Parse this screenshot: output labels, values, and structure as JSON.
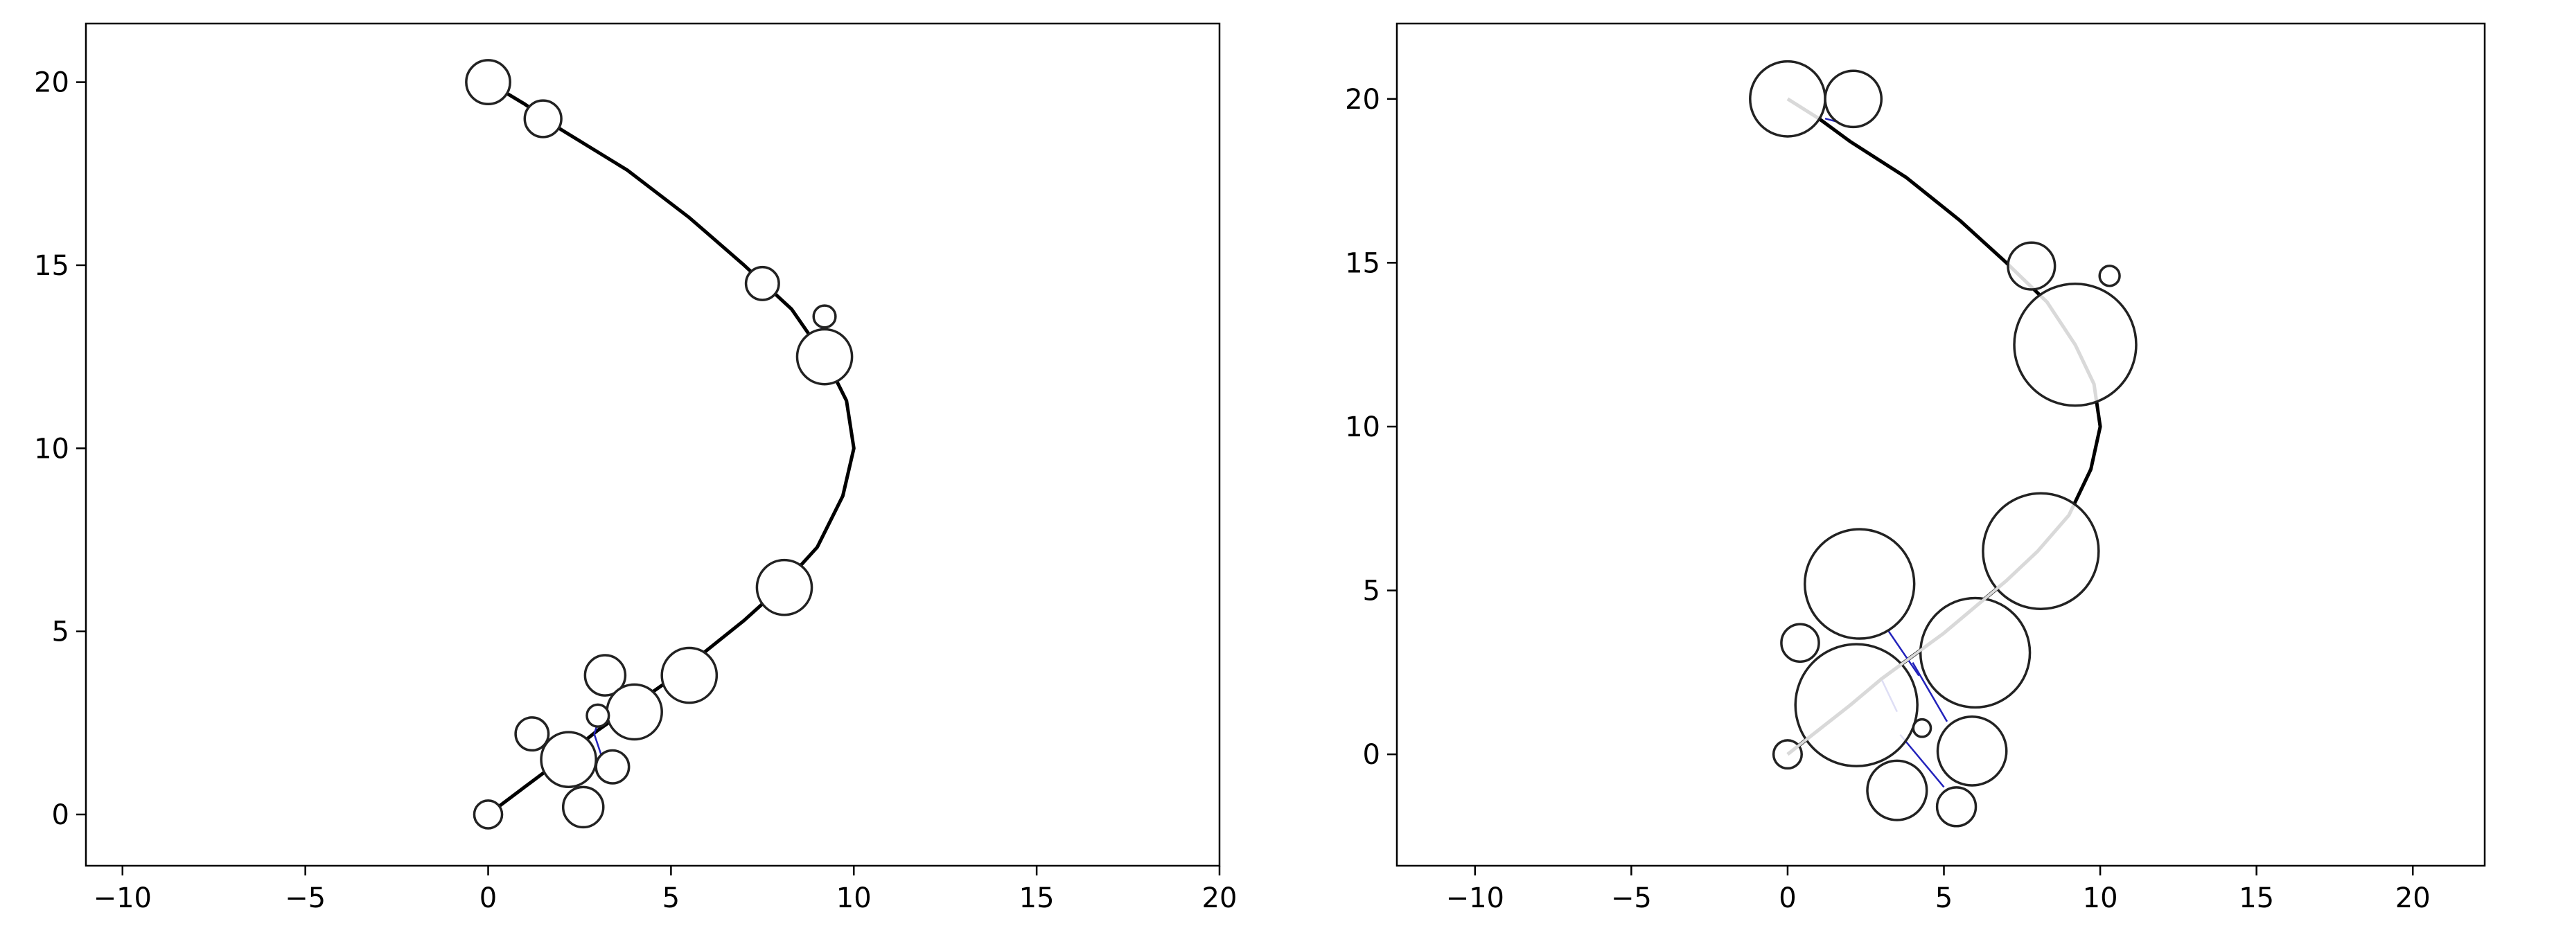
{
  "chart_data": [
    {
      "type": "scatter",
      "title": "",
      "xlabel": "",
      "ylabel": "",
      "xlim": [
        -11,
        20
      ],
      "ylim": [
        -1.4,
        21.6
      ],
      "xticks": [
        -10,
        -5,
        0,
        5,
        10,
        15,
        20
      ],
      "yticks": [
        0,
        5,
        10,
        15,
        20
      ],
      "xtick_labels": [
        "−10",
        "−5",
        "0",
        "5",
        "10",
        "15",
        "20"
      ],
      "ytick_labels": [
        "0",
        "5",
        "10",
        "15",
        "20"
      ],
      "grid": false,
      "curve_color": "#000000",
      "circle_fill": "#ffffff",
      "circle_edge": "#222222",
      "link_color": "#2222bb",
      "curve": [
        {
          "x": 0,
          "y": 0
        },
        {
          "x": 1.0,
          "y": 0.75
        },
        {
          "x": 2.0,
          "y": 1.5
        },
        {
          "x": 3.0,
          "y": 2.3
        },
        {
          "x": 4.0,
          "y": 3.0
        },
        {
          "x": 5.0,
          "y": 3.7
        },
        {
          "x": 6.0,
          "y": 4.5
        },
        {
          "x": 7.0,
          "y": 5.3
        },
        {
          "x": 8.0,
          "y": 6.2
        },
        {
          "x": 9.0,
          "y": 7.3
        },
        {
          "x": 9.7,
          "y": 8.7
        },
        {
          "x": 10.0,
          "y": 10.0
        },
        {
          "x": 9.8,
          "y": 11.3
        },
        {
          "x": 9.2,
          "y": 12.5
        },
        {
          "x": 8.3,
          "y": 13.8
        },
        {
          "x": 7.0,
          "y": 15.0
        },
        {
          "x": 5.5,
          "y": 16.3
        },
        {
          "x": 3.8,
          "y": 17.6
        },
        {
          "x": 2.0,
          "y": 18.7
        },
        {
          "x": 1.0,
          "y": 19.4
        },
        {
          "x": 0,
          "y": 20.0
        }
      ],
      "circles": [
        {
          "x": 0.0,
          "y": 20.0,
          "r": 0.6
        },
        {
          "x": 1.5,
          "y": 19.0,
          "r": 0.5
        },
        {
          "x": 7.5,
          "y": 14.5,
          "r": 0.45
        },
        {
          "x": 9.2,
          "y": 13.6,
          "r": 0.3
        },
        {
          "x": 9.2,
          "y": 12.5,
          "r": 0.75
        },
        {
          "x": 8.1,
          "y": 6.2,
          "r": 0.75
        },
        {
          "x": 5.5,
          "y": 3.8,
          "r": 0.75
        },
        {
          "x": 3.2,
          "y": 3.8,
          "r": 0.55
        },
        {
          "x": 4.0,
          "y": 2.8,
          "r": 0.75
        },
        {
          "x": 3.0,
          "y": 2.7,
          "r": 0.3
        },
        {
          "x": 1.2,
          "y": 2.2,
          "r": 0.45
        },
        {
          "x": 2.2,
          "y": 1.5,
          "r": 0.75
        },
        {
          "x": 3.4,
          "y": 1.3,
          "r": 0.45
        },
        {
          "x": 2.6,
          "y": 0.2,
          "r": 0.55
        },
        {
          "x": 0.0,
          "y": 0.0,
          "r": 0.38
        }
      ],
      "links": [
        {
          "x1": 1.2,
          "y1": 19.4,
          "x2": 1.5,
          "y2": 19.0
        },
        {
          "x1": 9.0,
          "y1": 13.1,
          "x2": 9.2,
          "y2": 13.4
        },
        {
          "x1": 2.9,
          "y1": 2.2,
          "x2": 3.0,
          "y2": 2.5
        },
        {
          "x1": 2.9,
          "y1": 2.2,
          "x2": 3.1,
          "y2": 1.6
        }
      ]
    },
    {
      "type": "scatter",
      "title": "",
      "xlabel": "",
      "ylabel": "",
      "xlim": [
        -12.5,
        22.3
      ],
      "ylim": [
        -3.4,
        22.3
      ],
      "xticks": [
        -10,
        -5,
        0,
        5,
        10,
        15,
        20
      ],
      "yticks": [
        0,
        5,
        10,
        15,
        20
      ],
      "xtick_labels": [
        "−10",
        "−5",
        "0",
        "5",
        "10",
        "15",
        "20"
      ],
      "ytick_labels": [
        "0",
        "5",
        "10",
        "15",
        "20"
      ],
      "grid": false,
      "curve_color": "#000000",
      "circle_fill": "#ffffff",
      "circle_edge": "#222222",
      "link_color": "#2222bb",
      "curve": [
        {
          "x": 0,
          "y": 0
        },
        {
          "x": 1.0,
          "y": 0.75
        },
        {
          "x": 2.0,
          "y": 1.5
        },
        {
          "x": 3.0,
          "y": 2.3
        },
        {
          "x": 4.0,
          "y": 3.0
        },
        {
          "x": 5.0,
          "y": 3.7
        },
        {
          "x": 6.0,
          "y": 4.5
        },
        {
          "x": 7.0,
          "y": 5.3
        },
        {
          "x": 8.0,
          "y": 6.2
        },
        {
          "x": 9.0,
          "y": 7.3
        },
        {
          "x": 9.7,
          "y": 8.7
        },
        {
          "x": 10.0,
          "y": 10.0
        },
        {
          "x": 9.8,
          "y": 11.3
        },
        {
          "x": 9.2,
          "y": 12.5
        },
        {
          "x": 8.3,
          "y": 13.8
        },
        {
          "x": 7.0,
          "y": 15.0
        },
        {
          "x": 5.5,
          "y": 16.3
        },
        {
          "x": 3.8,
          "y": 17.6
        },
        {
          "x": 2.0,
          "y": 18.7
        },
        {
          "x": 1.0,
          "y": 19.4
        },
        {
          "x": 0,
          "y": 20.0
        }
      ],
      "circles": [
        {
          "x": 0.0,
          "y": 20.0,
          "r": 1.2
        },
        {
          "x": 2.1,
          "y": 20.0,
          "r": 0.9
        },
        {
          "x": 7.8,
          "y": 14.9,
          "r": 0.75
        },
        {
          "x": 10.3,
          "y": 14.6,
          "r": 0.32
        },
        {
          "x": 9.2,
          "y": 12.5,
          "r": 1.95
        },
        {
          "x": 8.1,
          "y": 6.2,
          "r": 1.85
        },
        {
          "x": 2.3,
          "y": 5.2,
          "r": 1.75
        },
        {
          "x": 0.4,
          "y": 3.4,
          "r": 0.6
        },
        {
          "x": 6.0,
          "y": 3.1,
          "r": 1.75
        },
        {
          "x": 2.2,
          "y": 1.5,
          "r": 1.95
        },
        {
          "x": 4.3,
          "y": 0.8,
          "r": 0.28
        },
        {
          "x": 5.9,
          "y": 0.1,
          "r": 1.1
        },
        {
          "x": 0.0,
          "y": 0.0,
          "r": 0.45
        },
        {
          "x": 3.5,
          "y": -1.1,
          "r": 0.95
        },
        {
          "x": 5.4,
          "y": -1.6,
          "r": 0.62
        }
      ],
      "links": [
        {
          "x1": 1.2,
          "y1": 19.4,
          "x2": 1.6,
          "y2": 19.3
        },
        {
          "x1": 3.2,
          "y1": 3.8,
          "x2": 4.2,
          "y2": 2.4
        },
        {
          "x1": 4.0,
          "y1": 2.8,
          "x2": 5.1,
          "y2": 1.0
        },
        {
          "x1": 3.0,
          "y1": 2.3,
          "x2": 3.5,
          "y2": 1.3
        },
        {
          "x1": 3.6,
          "y1": 0.6,
          "x2": 5.0,
          "y2": -1.0
        }
      ]
    }
  ]
}
